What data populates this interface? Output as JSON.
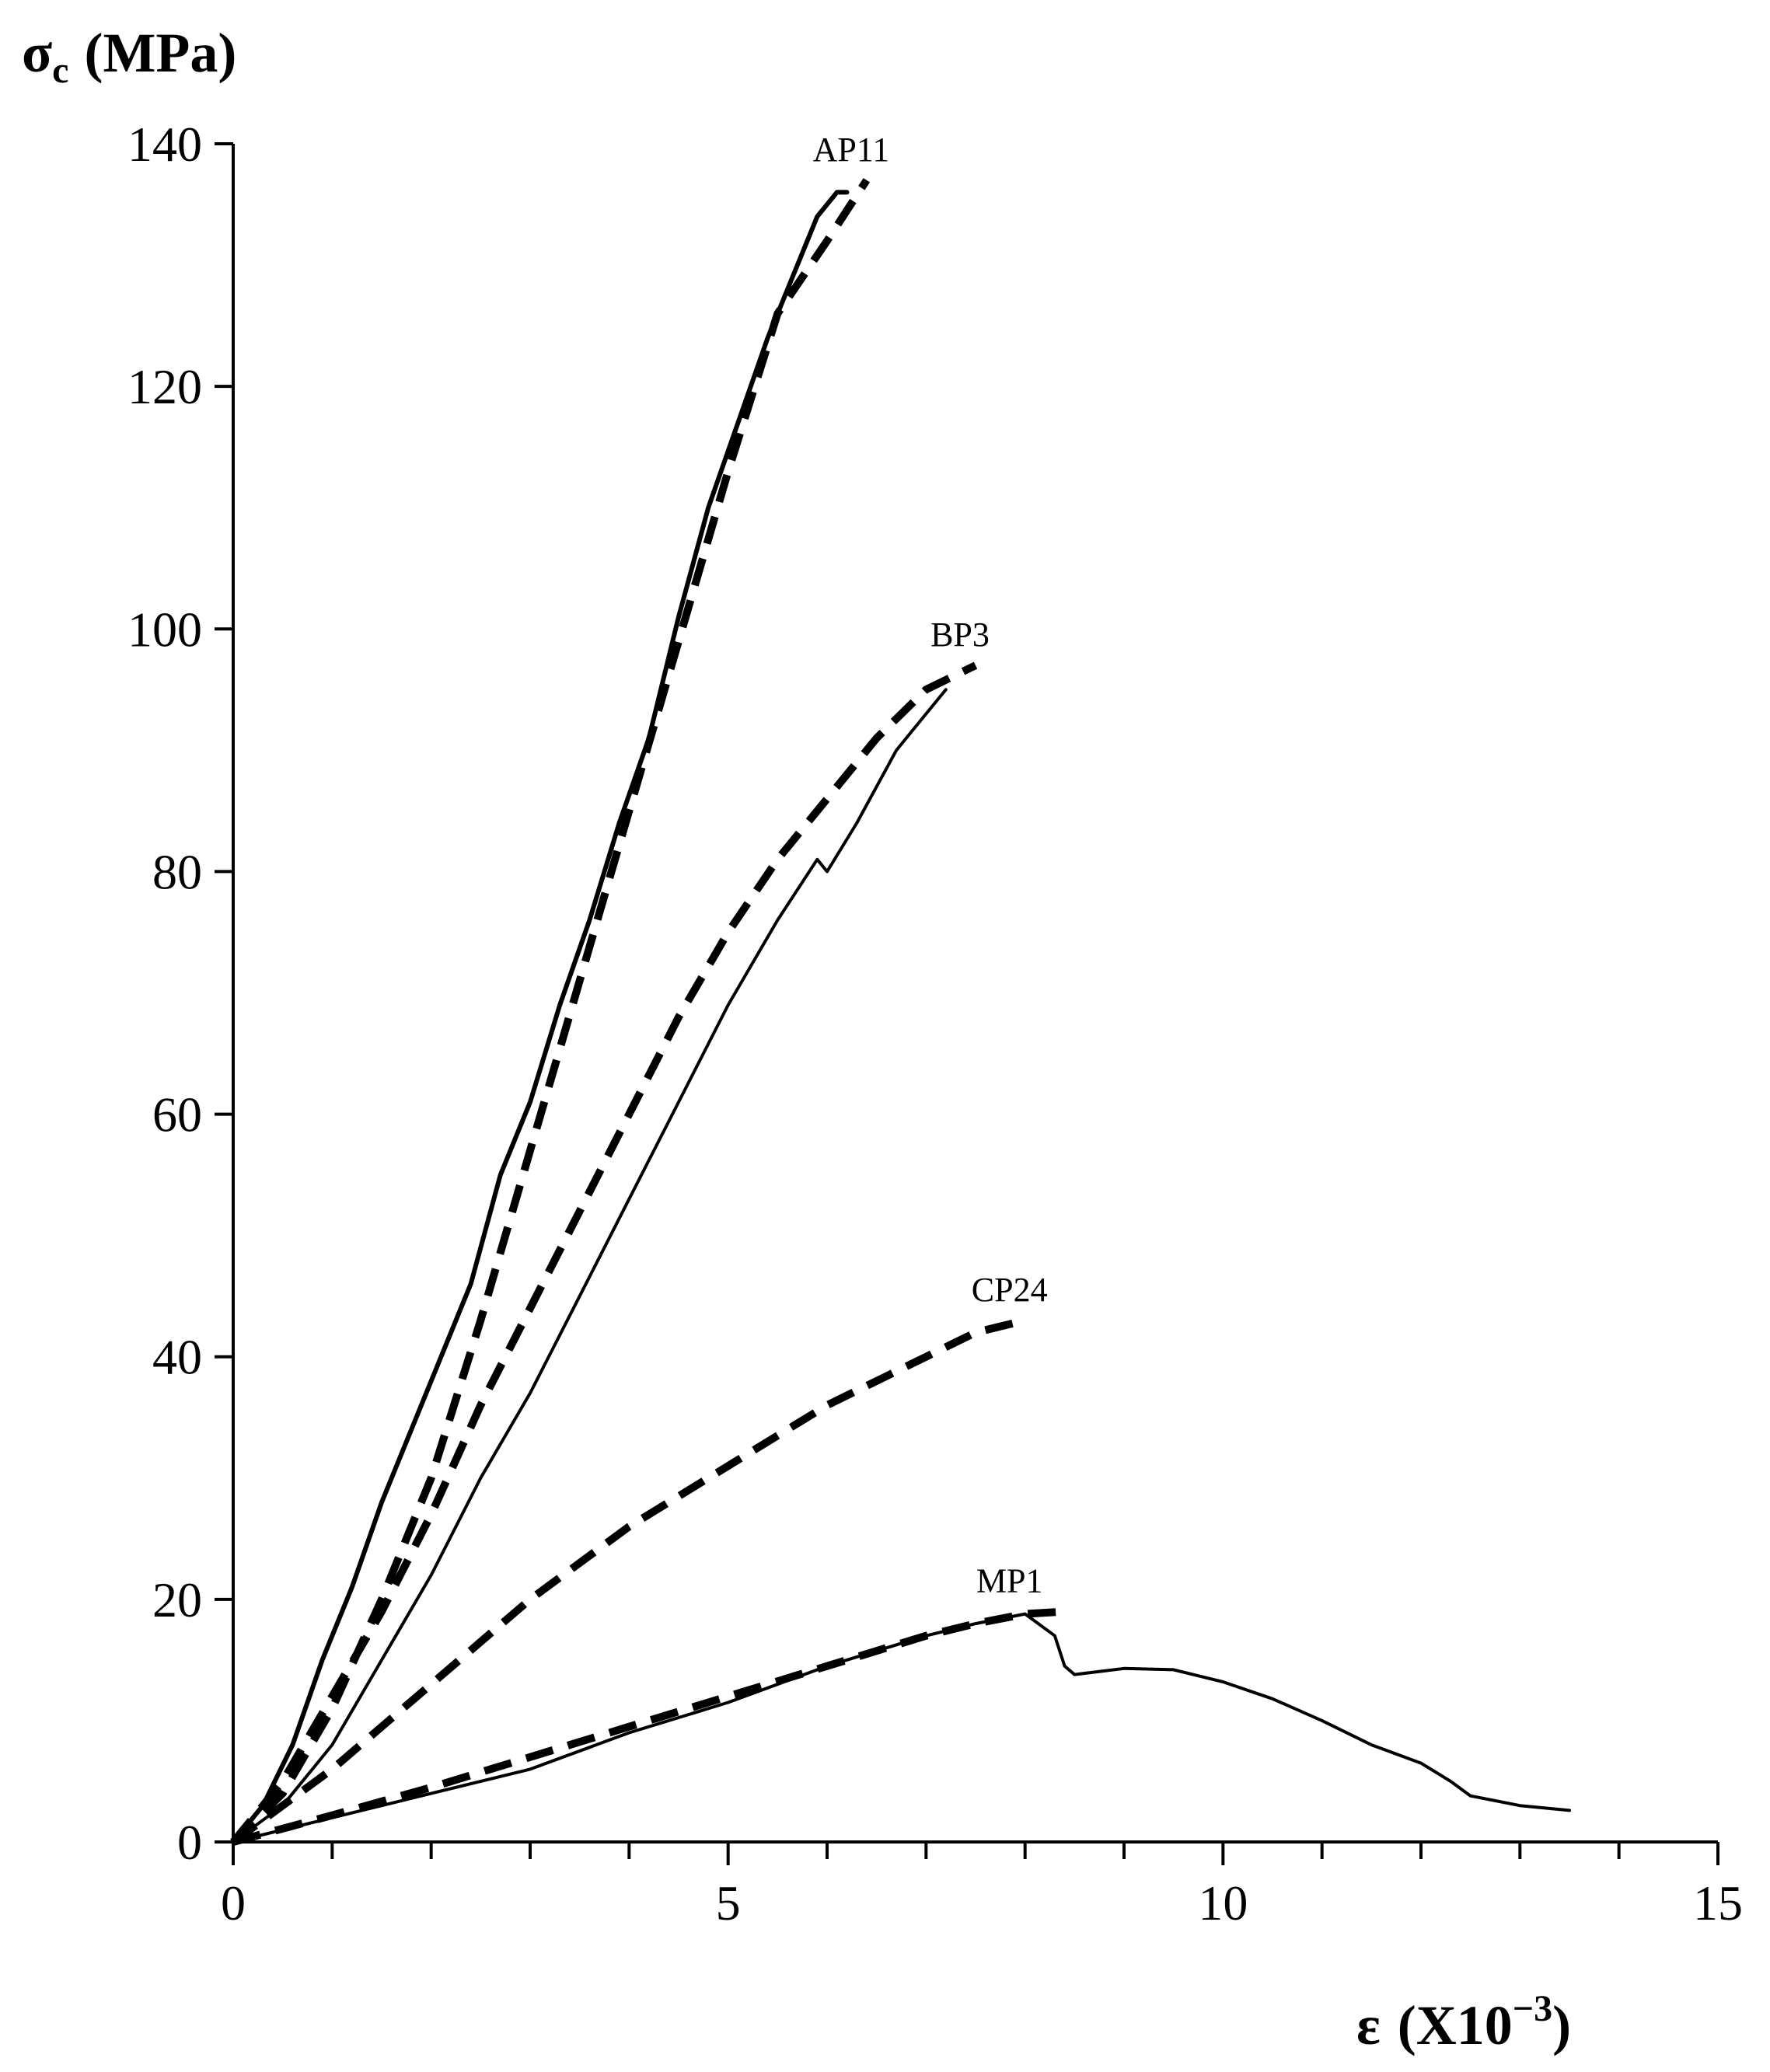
{
  "chart_data": {
    "type": "line",
    "ylabel": {
      "symbol": "σ",
      "subscript": "c",
      "unit": "(MPa)"
    },
    "xlabel": {
      "symbol": "ε",
      "unit_base": "(X10",
      "unit_exp": "−3",
      "unit_close": ")"
    },
    "xlim": [
      0,
      15
    ],
    "ylim": [
      0,
      140
    ],
    "x_ticks": [
      0,
      5,
      10,
      15
    ],
    "y_ticks": [
      0,
      20,
      40,
      60,
      80,
      100,
      120,
      140
    ],
    "x_minor_step": 1,
    "grid": false,
    "series": [
      {
        "name": "AP11",
        "style": "solid",
        "points": [
          [
            0,
            0
          ],
          [
            0.3,
            3
          ],
          [
            0.6,
            8
          ],
          [
            0.9,
            15
          ],
          [
            1.2,
            21
          ],
          [
            1.5,
            28
          ],
          [
            1.8,
            34
          ],
          [
            2.1,
            40
          ],
          [
            2.4,
            46
          ],
          [
            2.7,
            55
          ],
          [
            3.0,
            61
          ],
          [
            3.3,
            69
          ],
          [
            3.6,
            76
          ],
          [
            3.9,
            84
          ],
          [
            4.2,
            91
          ],
          [
            4.5,
            101
          ],
          [
            4.8,
            110
          ],
          [
            5.1,
            117
          ],
          [
            5.4,
            124
          ],
          [
            5.7,
            130
          ],
          [
            5.9,
            134
          ],
          [
            6.1,
            136
          ],
          [
            6.2,
            136
          ]
        ]
      },
      {
        "name": "AP11",
        "style": "dashed",
        "points": [
          [
            0,
            0
          ],
          [
            0.5,
            4
          ],
          [
            1.0,
            11
          ],
          [
            1.5,
            20
          ],
          [
            2.0,
            30
          ],
          [
            2.5,
            43
          ],
          [
            3.0,
            57
          ],
          [
            3.5,
            71
          ],
          [
            4.0,
            85
          ],
          [
            4.5,
            99
          ],
          [
            5.0,
            113
          ],
          [
            5.5,
            126
          ],
          [
            6.0,
            132
          ],
          [
            6.4,
            137
          ]
        ]
      },
      {
        "name": "BP3",
        "style": "solid",
        "points": [
          [
            0,
            0
          ],
          [
            0.5,
            3
          ],
          [
            1.0,
            8
          ],
          [
            1.5,
            15
          ],
          [
            2.0,
            22
          ],
          [
            2.5,
            30
          ],
          [
            3.0,
            37
          ],
          [
            3.5,
            45
          ],
          [
            4.0,
            53
          ],
          [
            4.5,
            61
          ],
          [
            5.0,
            69
          ],
          [
            5.5,
            76
          ],
          [
            5.9,
            81
          ],
          [
            6.0,
            80
          ],
          [
            6.3,
            84
          ],
          [
            6.7,
            90
          ],
          [
            7.0,
            93
          ],
          [
            7.2,
            95
          ]
        ]
      },
      {
        "name": "BP3",
        "style": "dashed",
        "points": [
          [
            0,
            0
          ],
          [
            0.5,
            5
          ],
          [
            1.0,
            12
          ],
          [
            1.5,
            19
          ],
          [
            2.0,
            27
          ],
          [
            2.5,
            36
          ],
          [
            3.0,
            44
          ],
          [
            3.5,
            52
          ],
          [
            4.0,
            60
          ],
          [
            4.5,
            68
          ],
          [
            5.0,
            75
          ],
          [
            5.5,
            81
          ],
          [
            6.0,
            86
          ],
          [
            6.5,
            91
          ],
          [
            7.0,
            95
          ],
          [
            7.5,
            97
          ]
        ]
      },
      {
        "name": "CP24",
        "style": "dashed",
        "points": [
          [
            0,
            0
          ],
          [
            1,
            6
          ],
          [
            2,
            13
          ],
          [
            3,
            20
          ],
          [
            4,
            26
          ],
          [
            5,
            31
          ],
          [
            6,
            36
          ],
          [
            7,
            40
          ],
          [
            7.5,
            42
          ],
          [
            8.0,
            43
          ]
        ]
      },
      {
        "name": "MP1",
        "style": "solid",
        "points": [
          [
            0,
            0
          ],
          [
            1,
            2
          ],
          [
            2,
            4
          ],
          [
            3,
            6
          ],
          [
            4,
            9
          ],
          [
            5,
            11.5
          ],
          [
            6,
            14.5
          ],
          [
            7,
            17
          ],
          [
            7.5,
            18
          ],
          [
            8.0,
            18.8
          ],
          [
            8.3,
            17
          ],
          [
            8.4,
            14.5
          ],
          [
            8.5,
            13.8
          ],
          [
            9.0,
            14.3
          ],
          [
            9.5,
            14.2
          ],
          [
            10.0,
            13.2
          ],
          [
            10.5,
            11.8
          ],
          [
            11.0,
            10
          ],
          [
            11.5,
            8
          ],
          [
            12.0,
            6.5
          ],
          [
            12.3,
            5
          ],
          [
            12.5,
            3.8
          ],
          [
            13.0,
            3
          ],
          [
            13.5,
            2.6
          ]
        ]
      },
      {
        "name": "MP1",
        "style": "dashed",
        "points": [
          [
            0,
            0
          ],
          [
            1,
            2.2
          ],
          [
            2,
            4.5
          ],
          [
            3,
            7
          ],
          [
            4,
            9.5
          ],
          [
            5,
            12
          ],
          [
            6,
            14.5
          ],
          [
            7,
            17
          ],
          [
            7.5,
            18
          ],
          [
            8.0,
            18.8
          ],
          [
            8.4,
            19
          ]
        ]
      }
    ],
    "annotations": [
      {
        "text": "AP11",
        "x": 6.4,
        "y": 137
      },
      {
        "text": "BP3",
        "x": 7.5,
        "y": 97
      },
      {
        "text": "CP24",
        "x": 8.0,
        "y": 43
      },
      {
        "text": "MP1",
        "x": 8.0,
        "y": 19
      }
    ]
  }
}
